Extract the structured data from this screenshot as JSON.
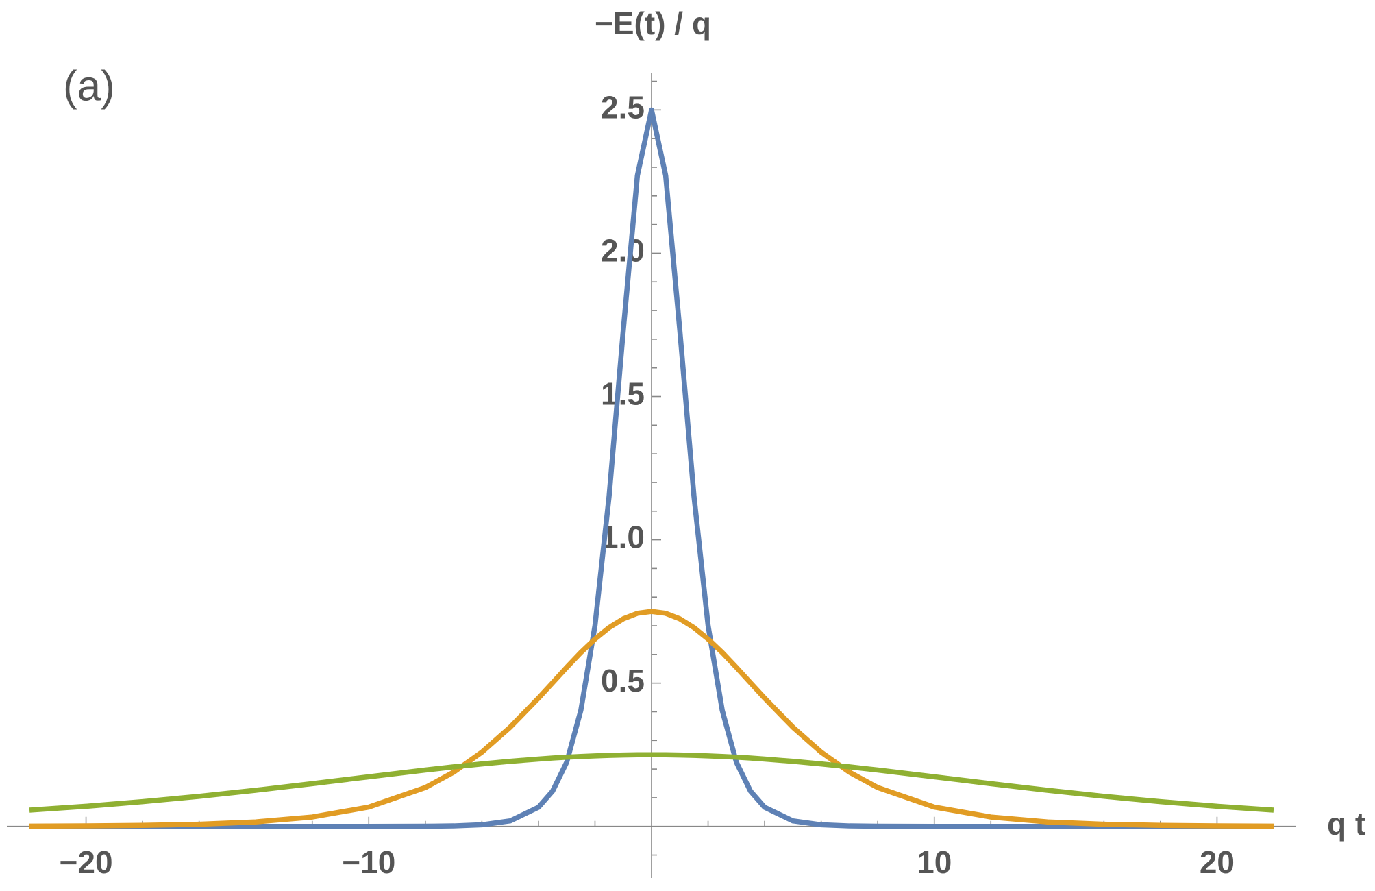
{
  "chart_data": {
    "type": "line",
    "ylabel": "−E(t) / q",
    "xlabel": "q t",
    "panel_label": "(a)",
    "xlim": [
      -22.8,
      22.8
    ],
    "ylim": [
      -0.18,
      2.63
    ],
    "xticks": [
      {
        "value": -20,
        "label": "−20"
      },
      {
        "value": -10,
        "label": "−10"
      },
      10,
      20
    ],
    "yticks": [
      0.5,
      {
        "value": 1,
        "label": "1.0"
      },
      1.5,
      {
        "value": 2,
        "label": "2.0"
      },
      2.5
    ],
    "xminorticks": [
      -18,
      -16,
      -14,
      -12,
      -8,
      -6,
      -4,
      -2,
      2,
      4,
      6,
      8,
      12,
      14,
      16,
      18
    ],
    "yminorticks": [
      -0.1,
      0.1,
      0.2,
      0.3,
      0.4,
      0.6,
      0.7,
      0.8,
      0.9,
      1.1,
      1.2,
      1.3,
      1.4,
      1.6,
      1.7,
      1.8,
      1.9,
      2.1,
      2.2,
      2.3,
      2.4,
      2.6
    ],
    "grid": false,
    "x": [
      -22,
      -20,
      -18,
      -16,
      -14,
      -12,
      -10,
      -8,
      -7,
      -6,
      -5,
      -4,
      -3.5,
      -3,
      -2.5,
      -2,
      -1.5,
      -1,
      -0.5,
      0,
      0.5,
      1,
      1.5,
      2,
      2.5,
      3,
      3.5,
      4,
      5,
      6,
      7,
      8,
      10,
      12,
      14,
      16,
      18,
      20,
      22
    ],
    "series": [
      {
        "color": "#5e81b5",
        "values": [
          0,
          0,
          0,
          0,
          0,
          0,
          0,
          0.00045,
          0.0016,
          0.0055,
          0.0192,
          0.0665,
          0.123,
          0.224,
          0.405,
          0.701,
          1.153,
          1.731,
          2.271,
          2.5,
          2.271,
          1.731,
          1.153,
          0.701,
          0.405,
          0.224,
          0.123,
          0.0665,
          0.0192,
          0.0055,
          0.0016,
          0.00045,
          0,
          0,
          0,
          0,
          0,
          0,
          0
        ]
      },
      {
        "color": "#e19c24",
        "values": [
          0.0008,
          0.0017,
          0.0035,
          0.0074,
          0.0156,
          0.0326,
          0.0673,
          0.1355,
          0.189,
          0.259,
          0.346,
          0.4474,
          0.501,
          0.555,
          0.6068,
          0.6537,
          0.6937,
          0.7242,
          0.7435,
          0.75,
          0.7435,
          0.7242,
          0.6937,
          0.6537,
          0.6068,
          0.555,
          0.501,
          0.4474,
          0.346,
          0.259,
          0.189,
          0.1355,
          0.0673,
          0.0326,
          0.0156,
          0.0074,
          0.0035,
          0.0017,
          0.0008
        ]
      },
      {
        "color": "#8fb032",
        "values": [
          0.0568,
          0.0701,
          0.0863,
          0.105,
          0.1261,
          0.1491,
          0.1731,
          0.1966,
          0.2077,
          0.2179,
          0.2271,
          0.235,
          0.2384,
          0.2414,
          0.244,
          0.2461,
          0.2478,
          0.249,
          0.2498,
          0.25,
          0.2498,
          0.249,
          0.2478,
          0.2461,
          0.244,
          0.2414,
          0.2384,
          0.235,
          0.2271,
          0.2179,
          0.2077,
          0.1966,
          0.1731,
          0.1491,
          0.1261,
          0.105,
          0.0863,
          0.0701,
          0.0568
        ]
      }
    ]
  }
}
